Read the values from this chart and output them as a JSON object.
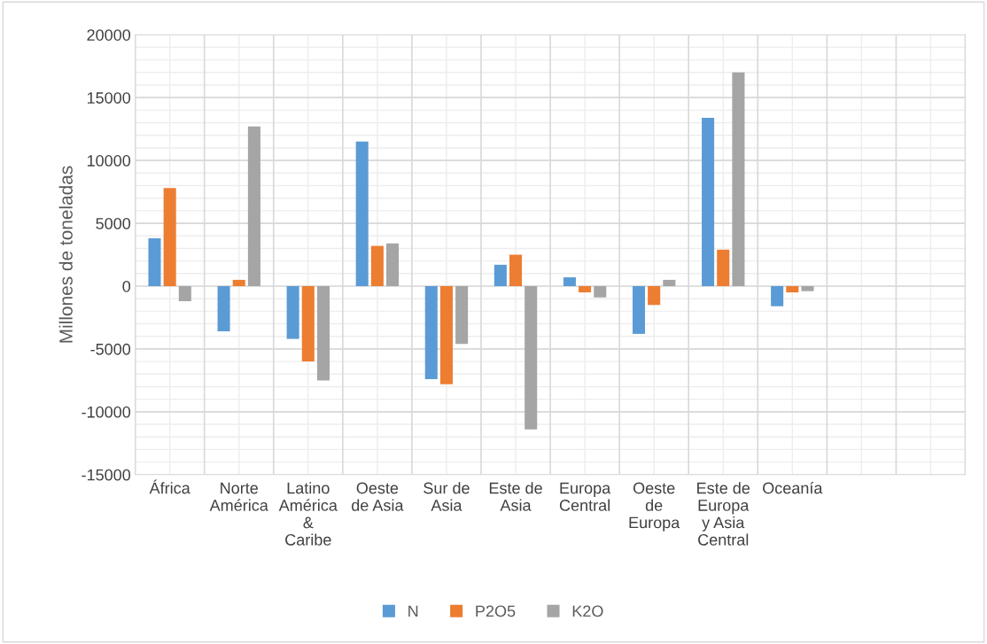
{
  "chart_data": {
    "type": "bar",
    "ylabel": "Millones de toneladas",
    "categories": [
      "África",
      "Norte\nAmérica",
      "Latino\nAmérica\n&\nCaribe",
      "Oeste\nde Asia",
      "Sur de\nAsia",
      "Este de\nAsia",
      "Europa\nCentral",
      "Oeste\nde\nEuropa",
      "Este de\nEuropa\ny Asia\nCentral",
      "Oceanía",
      null,
      null
    ],
    "series": [
      {
        "name": "N",
        "color": "#5b9bd5",
        "values": [
          3800,
          -3600,
          -4200,
          11500,
          -7400,
          1700,
          700,
          -3800,
          13400,
          -1600,
          null,
          null
        ]
      },
      {
        "name": "P2O5",
        "color": "#ed7d31",
        "values": [
          7800,
          500,
          -6000,
          3200,
          -7800,
          2500,
          -500,
          -1500,
          2900,
          -500,
          null,
          null
        ]
      },
      {
        "name": "K2O",
        "color": "#a5a5a5",
        "values": [
          -1200,
          12700,
          -7500,
          3400,
          -4600,
          -11400,
          -900,
          500,
          17000,
          -400,
          null,
          null
        ]
      }
    ],
    "ylim": [
      -15000,
      20000
    ],
    "yticks": [
      -15000,
      -10000,
      -5000,
      0,
      5000,
      10000,
      15000,
      20000
    ],
    "grid": true,
    "legend": "bottom"
  }
}
